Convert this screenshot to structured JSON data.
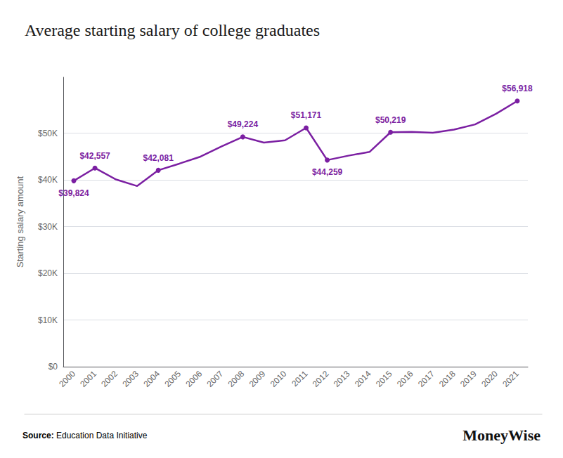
{
  "chart_data": {
    "type": "line",
    "title": "Average starting salary of college graduates",
    "categories": [
      "2000",
      "2001",
      "2002",
      "2003",
      "2004",
      "2005",
      "2006",
      "2007",
      "2008",
      "2009",
      "2010",
      "2011",
      "2012",
      "2013",
      "2014",
      "2015",
      "2016",
      "2017",
      "2018",
      "2019",
      "2020",
      "2021"
    ],
    "values": [
      39824,
      42557,
      40100,
      38700,
      42081,
      43500,
      45000,
      47200,
      49224,
      48000,
      48500,
      51171,
      44259,
      45200,
      46000,
      50219,
      50300,
      50100,
      50800,
      51900,
      54200,
      56918
    ],
    "color": "#7B1FA2",
    "ylabel": "Starting salary amount",
    "ylim": [
      0,
      62000
    ],
    "yticks": [
      {
        "value": 0,
        "label": "$0"
      },
      {
        "value": 10000,
        "label": "$10K"
      },
      {
        "value": 20000,
        "label": "$20K"
      },
      {
        "value": 30000,
        "label": "$30K"
      },
      {
        "value": 40000,
        "label": "$40K"
      },
      {
        "value": 50000,
        "label": "$50K"
      }
    ],
    "grid": true,
    "annotations": [
      {
        "x": "2000",
        "y": 39824,
        "label": "$39,824"
      },
      {
        "x": "2001",
        "y": 42557,
        "label": "$42,557"
      },
      {
        "x": "2004",
        "y": 42081,
        "label": "$42,081"
      },
      {
        "x": "2008",
        "y": 49224,
        "label": "$49,224"
      },
      {
        "x": "2011",
        "y": 51171,
        "label": "$51,171"
      },
      {
        "x": "2012",
        "y": 44259,
        "label": "$44,259"
      },
      {
        "x": "2015",
        "y": 50219,
        "label": "$50,219"
      },
      {
        "x": "2021",
        "y": 56918,
        "label": "$56,918"
      }
    ],
    "source_label": "Source:",
    "source": "Education Data Initiative",
    "brand": "MoneyWise"
  }
}
